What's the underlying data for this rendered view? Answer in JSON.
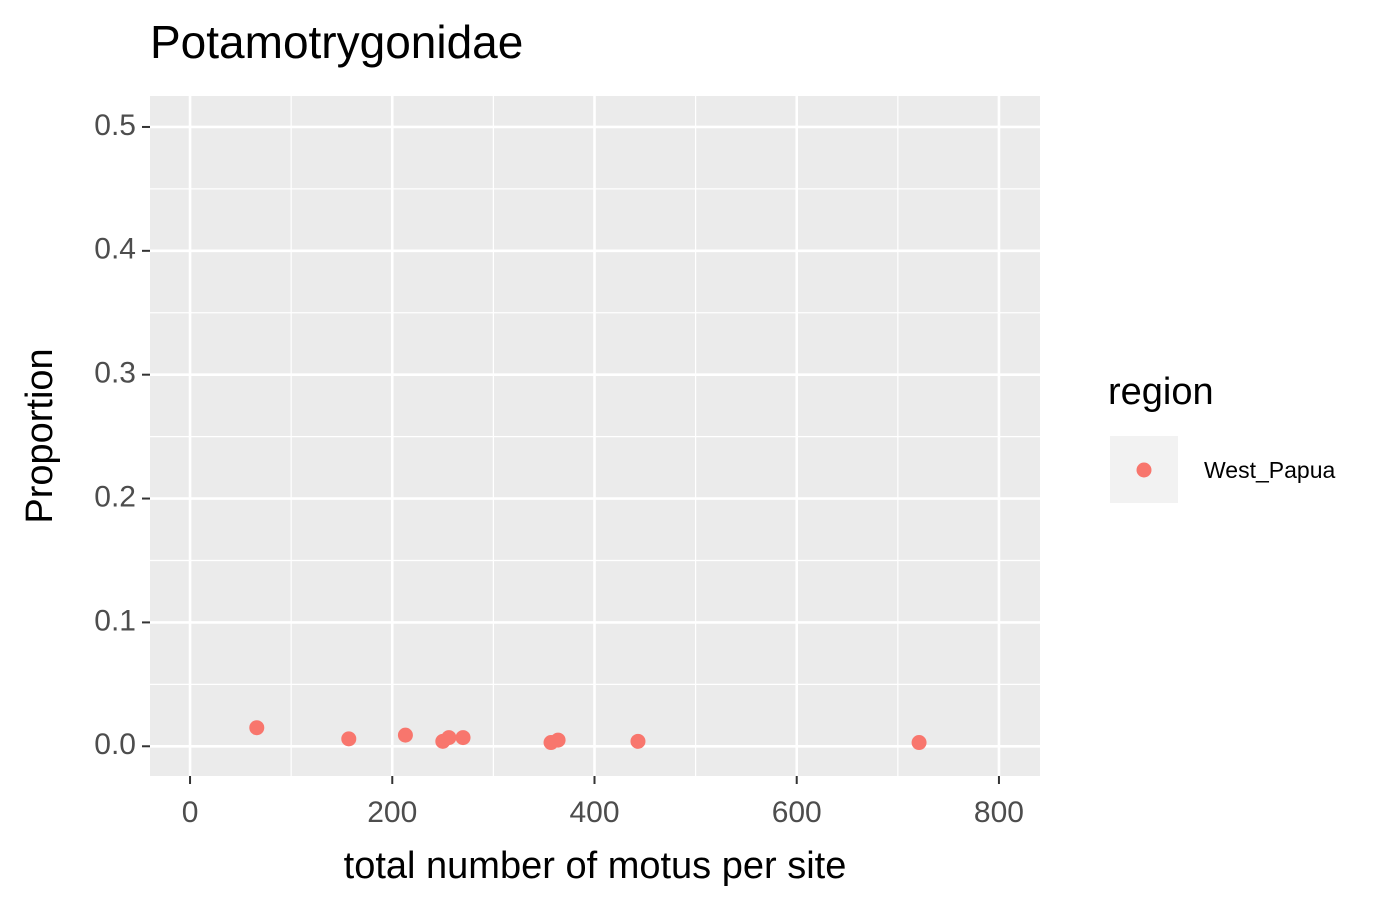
{
  "chart_data": {
    "type": "scatter",
    "title": "Potamotrygonidae",
    "x_label": "total number of motus per site",
    "y_label": "Proportion",
    "x": [
      66,
      157,
      213,
      250,
      256,
      270,
      357,
      364,
      443,
      721
    ],
    "series": [
      {
        "name": "West_Papua",
        "color": "#F8766D",
        "values": [
          0.015,
          0.006,
          0.009,
          0.004,
          0.007,
          0.007,
          0.003,
          0.005,
          0.004,
          0.003
        ]
      }
    ],
    "legend_title": "region",
    "xlim": [
      -39.6,
      840.6
    ],
    "xticks": [
      0,
      200,
      400,
      600,
      800
    ],
    "ylim": [
      -0.024,
      0.525
    ],
    "yticks": [
      {
        "value": 0,
        "label": "0.0"
      },
      0.1,
      0.2,
      0.3,
      0.4,
      0.5
    ],
    "grid": true,
    "minor_grid": true,
    "legend": "right"
  }
}
